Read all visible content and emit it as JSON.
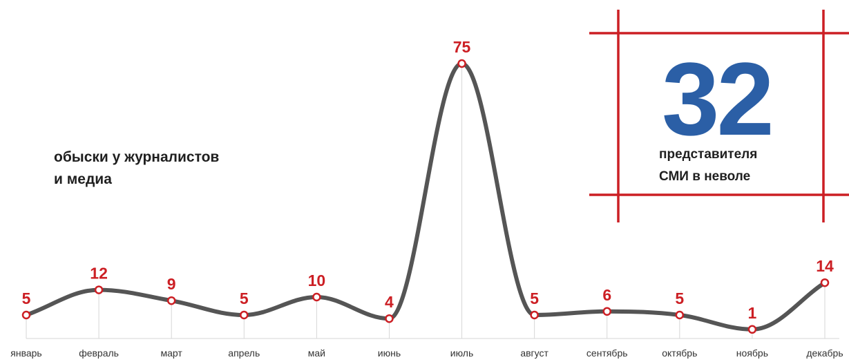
{
  "chart_data": {
    "type": "line",
    "title": "",
    "subtitle_lines": [
      "обыски у журналистов",
      "и медиа"
    ],
    "categories": [
      "январь",
      "февраль",
      "март",
      "апрель",
      "май",
      "июнь",
      "июль",
      "август",
      "сентябрь",
      "октябрь",
      "ноябрь",
      "декабрь"
    ],
    "series": [
      {
        "values": [
          5,
          12,
          9,
          5,
          10,
          4,
          75,
          5,
          6,
          5,
          1,
          14
        ]
      }
    ],
    "data_labels": [
      "5",
      "12",
      "9",
      "5",
      "10",
      "4",
      "75",
      "5",
      "6",
      "5",
      "1",
      "14"
    ],
    "xlabel": "",
    "ylabel": "",
    "grid": false,
    "line_color": "#555555",
    "marker_color": "#cc1f24",
    "label_color": "#cc1f24"
  },
  "stat_box": {
    "number": "32",
    "caption_lines": [
      "представителя",
      "СМИ в неволе"
    ],
    "number_color": "#2b5fa6",
    "frame_color": "#cc1f24"
  }
}
